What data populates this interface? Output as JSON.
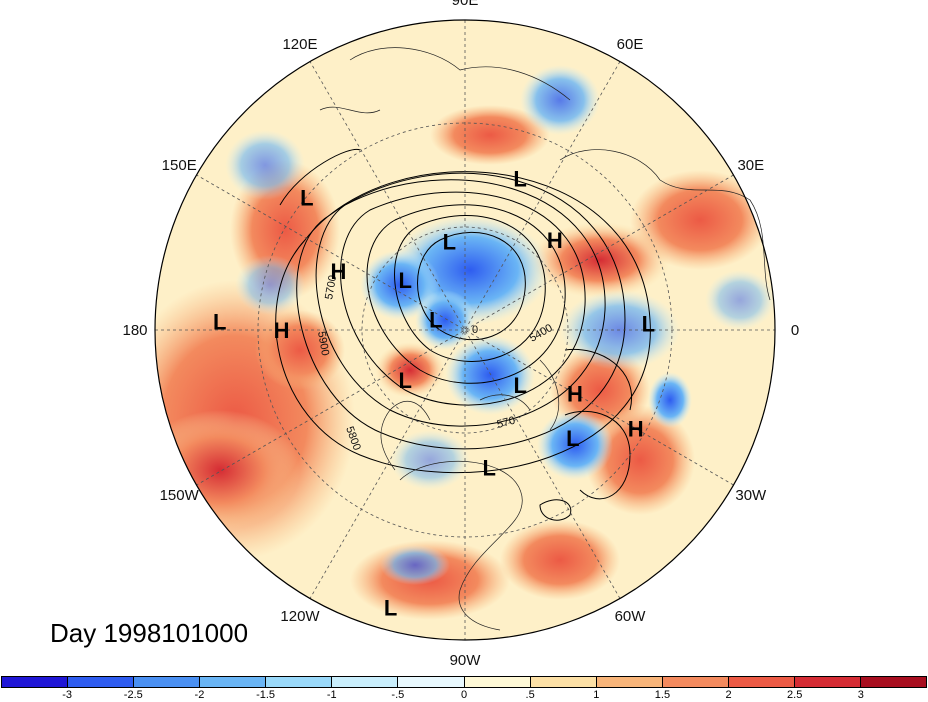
{
  "map": {
    "projection": "polar-stereographic-north",
    "longitude_labels": [
      {
        "text": "90E",
        "lon": 90
      },
      {
        "text": "60E",
        "lon": 60
      },
      {
        "text": "30E",
        "lon": 30
      },
      {
        "text": "0",
        "lon": 0
      },
      {
        "text": "30W",
        "lon": -30
      },
      {
        "text": "60W",
        "lon": -60
      },
      {
        "text": "90W",
        "lon": -90
      },
      {
        "text": "120W",
        "lon": -120
      },
      {
        "text": "150W",
        "lon": -150
      },
      {
        "text": "180",
        "lon": 180
      },
      {
        "text": "150E",
        "lon": 150
      },
      {
        "text": "120E",
        "lon": 120
      }
    ],
    "contour_labels": [
      "5700",
      "5900",
      "5800",
      "5400",
      "0",
      "570"
    ],
    "pressure_markers": [
      {
        "type": "L",
        "lon": 70,
        "lat": 50
      },
      {
        "type": "L",
        "lon": 140,
        "lat": 40
      },
      {
        "type": "H",
        "lon": 155,
        "lat": 55
      },
      {
        "type": "L",
        "lon": 100,
        "lat": 67
      },
      {
        "type": "L",
        "lon": 140,
        "lat": 70
      },
      {
        "type": "L",
        "lon": 160,
        "lat": 82
      },
      {
        "type": "H",
        "lon": 45,
        "lat": 58
      },
      {
        "type": "L",
        "lon": 2,
        "lat": 45
      },
      {
        "type": "L",
        "lon": 178,
        "lat": 32
      },
      {
        "type": "H",
        "lon": 180,
        "lat": 45
      },
      {
        "type": "L",
        "lon": -140,
        "lat": 70
      },
      {
        "type": "L",
        "lon": -45,
        "lat": 70
      },
      {
        "type": "H",
        "lon": -30,
        "lat": 58
      },
      {
        "type": "L",
        "lon": -45,
        "lat": 52
      },
      {
        "type": "H",
        "lon": -30,
        "lat": 42
      },
      {
        "type": "L",
        "lon": -80,
        "lat": 55
      },
      {
        "type": "L",
        "lon": -105,
        "lat": 24
      }
    ]
  },
  "title": {
    "day_label": "Day 1998101000"
  },
  "colorbar": {
    "colors": [
      "#1f16d6",
      "#2e5cf0",
      "#4a90f2",
      "#6ab5f5",
      "#9ad9fa",
      "#c9eefc",
      "#e8f8fe",
      "#fef8d6",
      "#fce0a6",
      "#f8b57a",
      "#f38a5e",
      "#ec5a45",
      "#d52c34",
      "#a80e1f"
    ],
    "tick_labels": [
      "-3",
      "-2.5",
      "-2",
      "-1.5",
      "-1",
      "-.5",
      "0",
      ".5",
      "1",
      "1.5",
      "2",
      "2.5",
      "3"
    ]
  }
}
